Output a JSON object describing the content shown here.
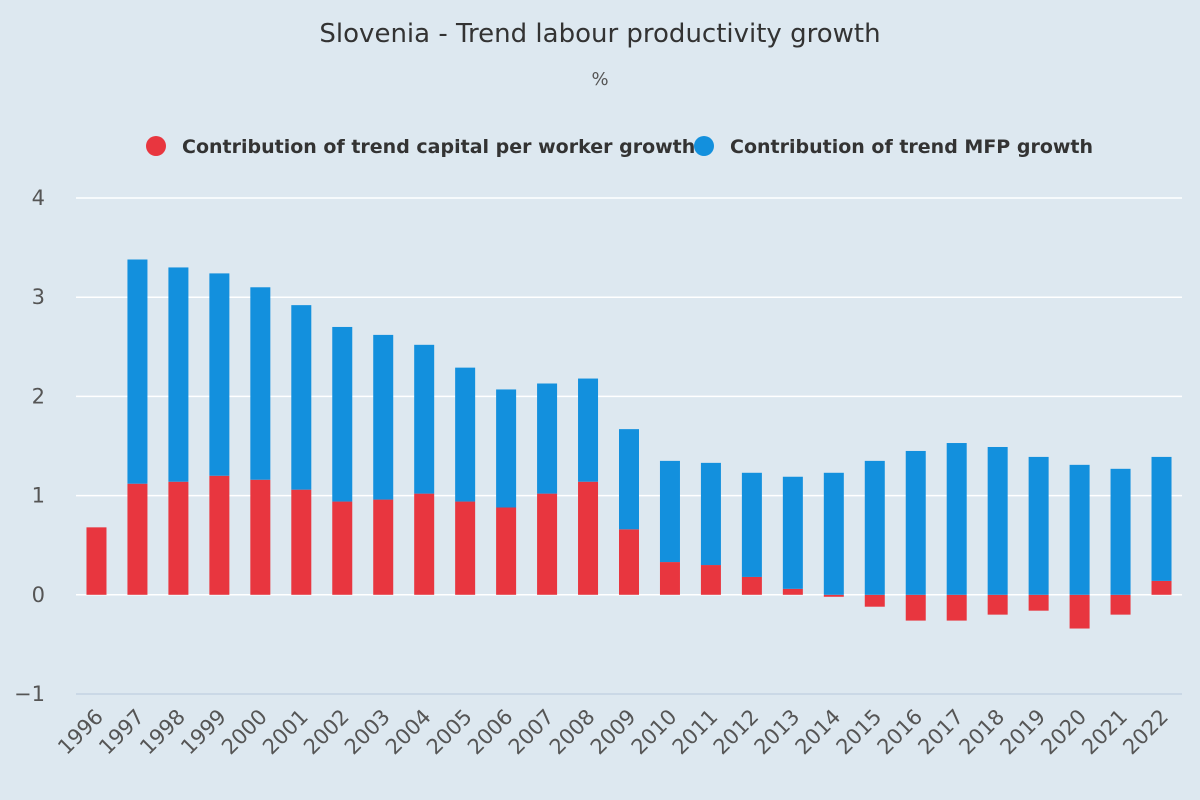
{
  "chart_data": {
    "type": "bar",
    "stacked": true,
    "title": "Slovenia - Trend labour productivity growth",
    "subtitle": "%",
    "xlabel": "",
    "ylabel": "",
    "ylim": [
      -1,
      4
    ],
    "yticks": [
      -1,
      0,
      1,
      2,
      3,
      4
    ],
    "grid": true,
    "legend_position": "top-center",
    "categories": [
      "1996",
      "1997",
      "1998",
      "1999",
      "2000",
      "2001",
      "2002",
      "2003",
      "2004",
      "2005",
      "2006",
      "2007",
      "2008",
      "2009",
      "2010",
      "2011",
      "2012",
      "2013",
      "2014",
      "2015",
      "2016",
      "2017",
      "2018",
      "2019",
      "2020",
      "2021",
      "2022"
    ],
    "series": [
      {
        "name": "Contribution of trend capital per worker growth",
        "color": "#e8363f",
        "values": [
          0.68,
          1.12,
          1.14,
          1.2,
          1.16,
          1.06,
          0.94,
          0.96,
          1.02,
          0.94,
          0.88,
          1.02,
          1.14,
          0.66,
          0.33,
          0.3,
          0.18,
          0.06,
          -0.02,
          -0.12,
          -0.26,
          -0.26,
          -0.2,
          -0.16,
          -0.34,
          -0.2,
          0.14
        ]
      },
      {
        "name": "Contribution of trend MFP growth",
        "color": "#1390dd",
        "values": [
          0.0,
          2.26,
          2.16,
          2.04,
          1.94,
          1.86,
          1.76,
          1.66,
          1.5,
          1.35,
          1.19,
          1.11,
          1.04,
          1.01,
          1.02,
          1.03,
          1.05,
          1.13,
          1.23,
          1.35,
          1.45,
          1.53,
          1.49,
          1.39,
          1.31,
          1.27,
          1.25
        ]
      }
    ]
  }
}
